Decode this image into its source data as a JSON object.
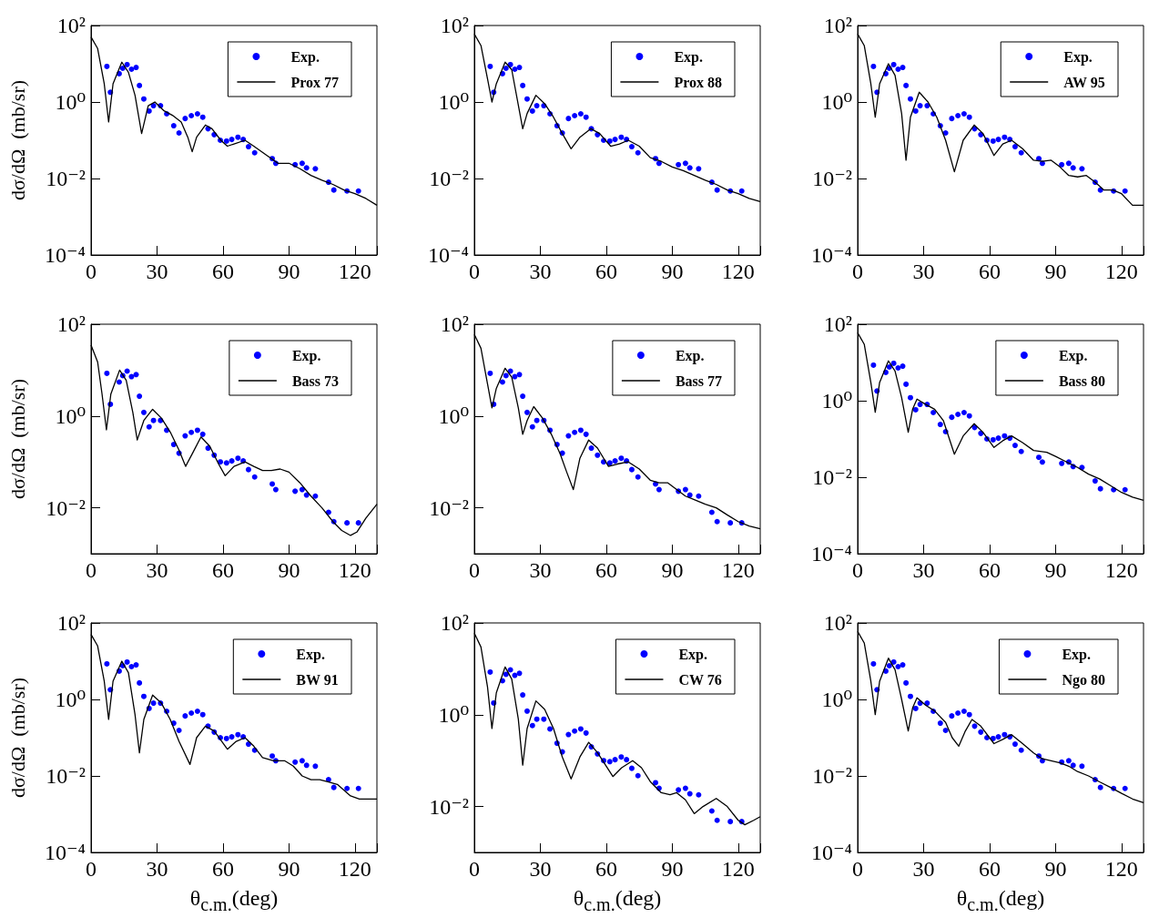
{
  "chart_data": [
    {
      "type": "scatter",
      "ylabel": "dσ/dΩ  (mb/sr)",
      "xlim": [
        0,
        130
      ],
      "xticks": [
        0,
        30,
        60,
        90,
        120
      ],
      "ylim": [
        0.0001,
        100
      ],
      "yticks": [
        {
          "value": 0.0001,
          "label": "10⁻⁴"
        },
        {
          "value": 0.01,
          "label": "10⁻²"
        },
        {
          "value": 1,
          "label": "10⁰"
        },
        {
          "value": 100,
          "label": "10²"
        }
      ],
      "log": "y",
      "grid": false,
      "legend": "top right",
      "marker": "circle",
      "line_style": "solid",
      "series": [
        {
          "name": "Exp.",
          "type": "scatter",
          "color": "#0000ff",
          "x": [
            7.2,
            8.8,
            12.8,
            14.4,
            16.4,
            18.4,
            20.5,
            22,
            24,
            26.4,
            28.4,
            31.6,
            34.4,
            37.6,
            40,
            42.8,
            45.6,
            48.4,
            50.8,
            53.2,
            56,
            58.8,
            61.6,
            64,
            66.8,
            69.2,
            71.6,
            74.4,
            82.4,
            84,
            92.8,
            96,
            98,
            102,
            108,
            110.4,
            116.4,
            121.6
          ],
          "values": [
            8.5,
            1.8,
            5.5,
            7.6,
            9.5,
            7.2,
            8,
            2.7,
            1.2,
            0.58,
            0.8,
            0.8,
            0.49,
            0.24,
            0.155,
            0.37,
            0.44,
            0.49,
            0.4,
            0.2,
            0.14,
            0.1,
            0.095,
            0.105,
            0.12,
            0.105,
            0.068,
            0.047,
            0.033,
            0.025,
            0.023,
            0.025,
            0.019,
            0.018,
            0.008,
            0.005,
            0.0047,
            0.0047
          ]
        },
        {
          "name": "Prox 77",
          "type": "line",
          "marker": "none",
          "color": "#000000",
          "x": [
            0,
            3,
            6,
            8,
            10,
            14,
            17,
            20,
            23,
            26,
            29,
            33,
            37,
            41,
            44,
            46,
            48,
            52,
            55,
            59,
            62,
            65,
            70,
            74,
            80,
            85,
            90,
            95,
            100,
            105,
            110,
            115,
            120,
            125,
            130
          ],
          "values": [
            50,
            25,
            3,
            0.3,
            3,
            11,
            6,
            1.5,
            0.15,
            0.8,
            1,
            0.6,
            0.45,
            0.3,
            0.12,
            0.05,
            0.12,
            0.25,
            0.2,
            0.1,
            0.07,
            0.08,
            0.1,
            0.07,
            0.04,
            0.025,
            0.025,
            0.018,
            0.012,
            0.009,
            0.007,
            0.005,
            0.004,
            0.003,
            0.002
          ]
        }
      ]
    },
    {
      "type": "scatter",
      "xlim": [
        0,
        130
      ],
      "xticks": [
        0,
        30,
        60,
        90,
        120
      ],
      "ylim": [
        0.0001,
        100
      ],
      "yticks": [
        {
          "value": 0.0001,
          "label": "10⁻⁴"
        },
        {
          "value": 0.01,
          "label": "10⁻²"
        },
        {
          "value": 1,
          "label": "10⁰"
        },
        {
          "value": 100,
          "label": "10²"
        }
      ],
      "log": "y",
      "grid": false,
      "legend": "top right",
      "marker": "circle",
      "line_style": "solid",
      "series": [
        {
          "name": "Exp.",
          "type": "scatter",
          "color": "#0000ff",
          "x": [
            7.2,
            8.8,
            12.8,
            14.4,
            16.4,
            18.4,
            20.5,
            22,
            24,
            26.4,
            28.4,
            31.6,
            34.4,
            37.6,
            40,
            42.8,
            45.6,
            48.4,
            50.8,
            53.2,
            56,
            58.8,
            61.6,
            64,
            66.8,
            69.2,
            71.6,
            74.4,
            82.4,
            84,
            92.8,
            96,
            98,
            102,
            108,
            110.4,
            116.4,
            121.6
          ],
          "values": [
            8.5,
            1.8,
            5.5,
            7.6,
            9.5,
            7.2,
            8,
            2.7,
            1.2,
            0.58,
            0.8,
            0.8,
            0.49,
            0.24,
            0.155,
            0.37,
            0.44,
            0.49,
            0.4,
            0.2,
            0.14,
            0.1,
            0.095,
            0.105,
            0.12,
            0.105,
            0.068,
            0.047,
            0.033,
            0.025,
            0.023,
            0.025,
            0.019,
            0.018,
            0.008,
            0.005,
            0.0047,
            0.0047
          ]
        },
        {
          "name": "Prox 88",
          "type": "line",
          "marker": "none",
          "color": "#000000",
          "x": [
            0,
            3,
            6,
            8,
            10,
            14,
            17,
            22,
            24,
            28,
            32,
            36,
            40,
            44,
            48,
            53,
            57,
            62,
            66,
            70,
            75,
            80,
            85,
            90,
            95,
            100,
            105,
            110,
            115,
            120,
            125,
            130
          ],
          "values": [
            60,
            30,
            4,
            1,
            3,
            11,
            7,
            0.2,
            0.5,
            1.5,
            0.9,
            0.4,
            0.15,
            0.06,
            0.12,
            0.2,
            0.15,
            0.07,
            0.08,
            0.1,
            0.07,
            0.035,
            0.028,
            0.02,
            0.016,
            0.012,
            0.009,
            0.007,
            0.005,
            0.004,
            0.003,
            0.0025
          ]
        }
      ]
    },
    {
      "type": "scatter",
      "xlim": [
        0,
        130
      ],
      "xticks": [
        0,
        30,
        60,
        90,
        120
      ],
      "ylim": [
        0.0001,
        100
      ],
      "yticks": [
        {
          "value": 0.0001,
          "label": "10⁻⁴"
        },
        {
          "value": 0.01,
          "label": "10⁻²"
        },
        {
          "value": 1,
          "label": "10⁰"
        },
        {
          "value": 100,
          "label": "10²"
        }
      ],
      "log": "y",
      "grid": false,
      "legend": "top right",
      "marker": "circle",
      "line_style": "solid",
      "series": [
        {
          "name": "Exp.",
          "type": "scatter",
          "color": "#0000ff",
          "x": [
            7.2,
            8.8,
            12.8,
            14.4,
            16.4,
            18.4,
            20.5,
            22,
            24,
            26.4,
            28.4,
            31.6,
            34.4,
            37.6,
            40,
            42.8,
            45.6,
            48.4,
            50.8,
            53.2,
            56,
            58.8,
            61.6,
            64,
            66.8,
            69.2,
            71.6,
            74.4,
            82.4,
            84,
            92.8,
            96,
            98,
            102,
            108,
            110.4,
            116.4,
            121.6
          ],
          "values": [
            8.5,
            1.8,
            5.5,
            7.6,
            9.5,
            7.2,
            8,
            2.7,
            1.2,
            0.58,
            0.8,
            0.8,
            0.49,
            0.24,
            0.155,
            0.37,
            0.44,
            0.49,
            0.4,
            0.2,
            0.14,
            0.1,
            0.095,
            0.105,
            0.12,
            0.105,
            0.068,
            0.047,
            0.033,
            0.025,
            0.023,
            0.025,
            0.019,
            0.018,
            0.008,
            0.005,
            0.0047,
            0.0047
          ]
        },
        {
          "name": "AW 95",
          "type": "line",
          "marker": "none",
          "color": "#000000",
          "x": [
            0,
            3,
            6,
            8,
            10,
            14,
            17,
            20,
            22,
            24,
            28,
            32,
            36,
            40,
            44,
            48,
            53,
            57,
            62,
            66,
            70,
            75,
            80,
            84,
            88,
            92,
            96,
            100,
            104,
            108,
            112,
            116,
            120,
            125,
            130
          ],
          "values": [
            60,
            30,
            3,
            0.4,
            3,
            10,
            5,
            0.5,
            0.03,
            0.4,
            1.8,
            1,
            0.4,
            0.1,
            0.015,
            0.1,
            0.25,
            0.15,
            0.04,
            0.08,
            0.1,
            0.06,
            0.03,
            0.028,
            0.03,
            0.02,
            0.012,
            0.011,
            0.012,
            0.008,
            0.005,
            0.005,
            0.004,
            0.002,
            0.002
          ]
        }
      ]
    },
    {
      "type": "scatter",
      "ylabel": "dσ/dΩ  (mb/sr)",
      "xlim": [
        0,
        130
      ],
      "xticks": [
        0,
        30,
        60,
        90,
        120
      ],
      "ylim": [
        0.001,
        100
      ],
      "yticks": [
        {
          "value": 0.01,
          "label": "10⁻²"
        },
        {
          "value": 1,
          "label": "10⁰"
        },
        {
          "value": 100,
          "label": "10²"
        }
      ],
      "log": "y",
      "grid": false,
      "legend": "top right",
      "marker": "circle",
      "line_style": "solid",
      "series": [
        {
          "name": "Exp.",
          "type": "scatter",
          "color": "#0000ff",
          "x": [
            7.2,
            8.8,
            12.8,
            14.4,
            16.4,
            18.4,
            20.5,
            22,
            24,
            26.4,
            28.4,
            31.6,
            34.4,
            37.6,
            40,
            42.8,
            45.6,
            48.4,
            50.8,
            53.2,
            56,
            58.8,
            61.6,
            64,
            66.8,
            69.2,
            71.6,
            74.4,
            82.4,
            84,
            92.8,
            96,
            98,
            102,
            108,
            110.4,
            116.4,
            121.6
          ],
          "values": [
            8.5,
            1.8,
            5.5,
            7.6,
            9.5,
            7.2,
            8,
            2.7,
            1.2,
            0.58,
            0.8,
            0.8,
            0.49,
            0.24,
            0.155,
            0.37,
            0.44,
            0.49,
            0.4,
            0.2,
            0.14,
            0.1,
            0.095,
            0.105,
            0.12,
            0.105,
            0.068,
            0.047,
            0.033,
            0.025,
            0.023,
            0.025,
            0.019,
            0.018,
            0.008,
            0.005,
            0.0047,
            0.0047
          ]
        },
        {
          "name": "Bass 73",
          "type": "line",
          "marker": "none",
          "color": "#000000",
          "x": [
            0,
            3,
            5,
            7,
            9,
            13,
            16,
            19,
            21,
            24,
            28,
            32,
            36,
            40,
            43,
            46,
            50,
            54,
            58,
            61,
            65,
            70,
            74,
            78,
            82,
            86,
            90,
            95,
            100,
            105,
            110,
            114,
            118,
            121,
            125,
            130
          ],
          "values": [
            35,
            15,
            3,
            0.5,
            3,
            10,
            6,
            1.2,
            0.3,
            0.8,
            1.4,
            0.9,
            0.45,
            0.18,
            0.08,
            0.15,
            0.35,
            0.22,
            0.09,
            0.05,
            0.08,
            0.1,
            0.08,
            0.065,
            0.065,
            0.07,
            0.06,
            0.035,
            0.018,
            0.01,
            0.005,
            0.0032,
            0.0025,
            0.003,
            0.006,
            0.012
          ]
        }
      ]
    },
    {
      "type": "scatter",
      "xlim": [
        0,
        130
      ],
      "xticks": [
        0,
        30,
        60,
        90,
        120
      ],
      "ylim": [
        0.001,
        100
      ],
      "yticks": [
        {
          "value": 0.01,
          "label": "10⁻²"
        },
        {
          "value": 1,
          "label": "10⁰"
        },
        {
          "value": 100,
          "label": "10²"
        }
      ],
      "log": "y",
      "grid": false,
      "legend": "top right",
      "marker": "circle",
      "line_style": "solid",
      "series": [
        {
          "name": "Exp.",
          "type": "scatter",
          "color": "#0000ff",
          "x": [
            7.2,
            8.8,
            12.8,
            14.4,
            16.4,
            18.4,
            20.5,
            22,
            24,
            26.4,
            28.4,
            31.6,
            34.4,
            37.6,
            40,
            42.8,
            45.6,
            48.4,
            50.8,
            53.2,
            56,
            58.8,
            61.6,
            64,
            66.8,
            69.2,
            71.6,
            74.4,
            82.4,
            84,
            92.8,
            96,
            98,
            102,
            108,
            110.4,
            116.4,
            121.6
          ],
          "values": [
            8.5,
            1.8,
            5.5,
            7.6,
            9.5,
            7.2,
            8,
            2.7,
            1.2,
            0.58,
            0.8,
            0.8,
            0.49,
            0.24,
            0.155,
            0.37,
            0.44,
            0.49,
            0.4,
            0.2,
            0.14,
            0.1,
            0.095,
            0.105,
            0.12,
            0.105,
            0.068,
            0.047,
            0.033,
            0.025,
            0.023,
            0.025,
            0.019,
            0.018,
            0.008,
            0.005,
            0.0047,
            0.0047
          ]
        },
        {
          "name": "Bass 77",
          "type": "line",
          "marker": "none",
          "color": "#000000",
          "x": [
            0,
            3,
            6,
            8,
            10,
            14,
            17,
            20,
            22,
            24,
            27,
            31,
            35,
            39,
            42,
            45,
            48,
            52,
            56,
            61,
            65,
            70,
            75,
            80,
            84,
            88,
            92,
            96,
            100,
            105,
            110,
            115,
            120,
            125,
            130
          ],
          "values": [
            60,
            30,
            5,
            1.5,
            4,
            11,
            7,
            1.5,
            0.4,
            0.8,
            1.6,
            0.9,
            0.4,
            0.15,
            0.06,
            0.025,
            0.12,
            0.3,
            0.2,
            0.08,
            0.09,
            0.1,
            0.07,
            0.04,
            0.035,
            0.035,
            0.025,
            0.018,
            0.015,
            0.012,
            0.01,
            0.007,
            0.005,
            0.004,
            0.0035
          ]
        }
      ]
    },
    {
      "type": "scatter",
      "xlim": [
        0,
        130
      ],
      "xticks": [
        0,
        30,
        60,
        90,
        120
      ],
      "ylim": [
        0.0001,
        100
      ],
      "yticks": [
        {
          "value": 0.0001,
          "label": "10⁻⁴"
        },
        {
          "value": 0.01,
          "label": "10⁻²"
        },
        {
          "value": 1,
          "label": "10⁰"
        },
        {
          "value": 100,
          "label": "10²"
        }
      ],
      "log": "y",
      "grid": false,
      "legend": "top right",
      "marker": "circle",
      "line_style": "solid",
      "series": [
        {
          "name": "Exp.",
          "type": "scatter",
          "color": "#0000ff",
          "x": [
            7.2,
            8.8,
            12.8,
            14.4,
            16.4,
            18.4,
            20.5,
            22,
            24,
            26.4,
            28.4,
            31.6,
            34.4,
            37.6,
            40,
            42.8,
            45.6,
            48.4,
            50.8,
            53.2,
            56,
            58.8,
            61.6,
            64,
            66.8,
            69.2,
            71.6,
            74.4,
            82.4,
            84,
            92.8,
            96,
            98,
            102,
            108,
            110.4,
            116.4,
            121.6
          ],
          "values": [
            8.5,
            1.8,
            5.5,
            7.6,
            9.5,
            7.2,
            8,
            2.7,
            1.2,
            0.58,
            0.8,
            0.8,
            0.49,
            0.24,
            0.155,
            0.37,
            0.44,
            0.49,
            0.4,
            0.2,
            0.14,
            0.1,
            0.095,
            0.105,
            0.12,
            0.105,
            0.068,
            0.047,
            0.033,
            0.025,
            0.023,
            0.025,
            0.019,
            0.018,
            0.008,
            0.005,
            0.0047,
            0.0047
          ]
        },
        {
          "name": "Bass 80",
          "type": "line",
          "marker": "none",
          "color": "#000000",
          "x": [
            0,
            3,
            6,
            8,
            10,
            14,
            17,
            20,
            23,
            25,
            27,
            31,
            35,
            39,
            44,
            48,
            53,
            57,
            62,
            66,
            70,
            75,
            80,
            86,
            90,
            95,
            100,
            105,
            110,
            115,
            120,
            125,
            130
          ],
          "values": [
            60,
            30,
            3,
            0.5,
            3,
            11,
            6,
            1.2,
            0.15,
            0.6,
            1.1,
            0.8,
            0.6,
            0.3,
            0.04,
            0.12,
            0.25,
            0.15,
            0.06,
            0.09,
            0.12,
            0.08,
            0.05,
            0.045,
            0.035,
            0.025,
            0.018,
            0.012,
            0.009,
            0.006,
            0.004,
            0.003,
            0.0025
          ]
        }
      ]
    },
    {
      "type": "scatter",
      "ylabel": "dσ/dΩ  (mb/sr)",
      "xlabel": "θ$_{c.m.}$(deg)",
      "xlim": [
        0,
        130
      ],
      "xticks": [
        0,
        30,
        60,
        90,
        120
      ],
      "ylim": [
        0.0001,
        100
      ],
      "yticks": [
        {
          "value": 0.0001,
          "label": "10⁻⁴"
        },
        {
          "value": 0.01,
          "label": "10⁻²"
        },
        {
          "value": 1,
          "label": "10⁰"
        },
        {
          "value": 100,
          "label": "10²"
        }
      ],
      "log": "y",
      "grid": false,
      "legend": "top right",
      "marker": "circle",
      "line_style": "solid",
      "series": [
        {
          "name": "Exp.",
          "type": "scatter",
          "color": "#0000ff",
          "x": [
            7.2,
            8.8,
            12.8,
            14.4,
            16.4,
            18.4,
            20.5,
            22,
            24,
            26.4,
            28.4,
            31.6,
            34.4,
            37.6,
            40,
            42.8,
            45.6,
            48.4,
            50.8,
            53.2,
            56,
            58.8,
            61.6,
            64,
            66.8,
            69.2,
            71.6,
            74.4,
            82.4,
            84,
            92.8,
            96,
            98,
            102,
            108,
            110.4,
            116.4,
            121.6
          ],
          "values": [
            8.5,
            1.8,
            5.5,
            7.6,
            9.5,
            7.2,
            8,
            2.7,
            1.2,
            0.58,
            0.8,
            0.8,
            0.49,
            0.24,
            0.155,
            0.37,
            0.44,
            0.49,
            0.4,
            0.2,
            0.14,
            0.1,
            0.095,
            0.105,
            0.12,
            0.105,
            0.068,
            0.047,
            0.033,
            0.025,
            0.023,
            0.025,
            0.019,
            0.018,
            0.008,
            0.005,
            0.0047,
            0.0047
          ]
        },
        {
          "name": "BW 91",
          "type": "line",
          "marker": "none",
          "color": "#000000",
          "x": [
            0,
            3,
            6,
            8,
            10,
            14,
            17,
            20,
            22,
            24,
            28,
            32,
            36,
            40,
            45,
            48,
            52,
            56,
            62,
            66,
            70,
            74,
            78,
            83,
            88,
            92,
            96,
            100,
            104,
            108,
            112,
            118,
            122,
            126,
            130
          ],
          "values": [
            50,
            25,
            3,
            0.3,
            3,
            10,
            5,
            0.4,
            0.04,
            0.3,
            1.3,
            0.8,
            0.3,
            0.08,
            0.02,
            0.1,
            0.2,
            0.15,
            0.05,
            0.08,
            0.1,
            0.06,
            0.03,
            0.025,
            0.025,
            0.018,
            0.01,
            0.008,
            0.008,
            0.007,
            0.006,
            0.003,
            0.0025,
            0.0025,
            0.0025
          ]
        }
      ]
    },
    {
      "type": "scatter",
      "xlabel": "θ$_{c.m.}$(deg)",
      "xlim": [
        0,
        130
      ],
      "xticks": [
        0,
        30,
        60,
        90,
        120
      ],
      "ylim": [
        0.001,
        100
      ],
      "yticks": [
        {
          "value": 0.01,
          "label": "10⁻²"
        },
        {
          "value": 1,
          "label": "10⁰"
        },
        {
          "value": 100,
          "label": "10²"
        }
      ],
      "log": "y",
      "grid": false,
      "legend": "top right",
      "marker": "circle",
      "line_style": "solid",
      "series": [
        {
          "name": "Exp.",
          "type": "scatter",
          "color": "#0000ff",
          "x": [
            7.2,
            8.8,
            12.8,
            14.4,
            16.4,
            18.4,
            20.5,
            22,
            24,
            26.4,
            28.4,
            31.6,
            34.4,
            37.6,
            40,
            42.8,
            45.6,
            48.4,
            50.8,
            53.2,
            56,
            58.8,
            61.6,
            64,
            66.8,
            69.2,
            71.6,
            74.4,
            82.4,
            84,
            92.8,
            96,
            98,
            102,
            108,
            110.4,
            116.4,
            121.6
          ],
          "values": [
            8.5,
            1.8,
            5.5,
            7.6,
            9.5,
            7.2,
            8,
            2.7,
            1.2,
            0.58,
            0.8,
            0.8,
            0.49,
            0.24,
            0.155,
            0.37,
            0.44,
            0.49,
            0.4,
            0.2,
            0.14,
            0.1,
            0.095,
            0.105,
            0.12,
            0.105,
            0.068,
            0.047,
            0.033,
            0.025,
            0.023,
            0.025,
            0.019,
            0.018,
            0.008,
            0.005,
            0.0047,
            0.0047
          ]
        },
        {
          "name": "CW 76",
          "type": "line",
          "marker": "none",
          "color": "#000000",
          "x": [
            0,
            3,
            6,
            8,
            10,
            14,
            17,
            20,
            22,
            24,
            28,
            32,
            36,
            40,
            44,
            48,
            52,
            56,
            63,
            67,
            72,
            76,
            80,
            85,
            89,
            92,
            96,
            100,
            104,
            110,
            115,
            120,
            123,
            127,
            130
          ],
          "values": [
            60,
            30,
            4,
            0.5,
            3,
            11,
            6,
            0.8,
            0.08,
            0.5,
            2,
            1.3,
            0.5,
            0.12,
            0.04,
            0.12,
            0.25,
            0.15,
            0.045,
            0.07,
            0.1,
            0.07,
            0.035,
            0.02,
            0.018,
            0.02,
            0.014,
            0.007,
            0.01,
            0.015,
            0.01,
            0.005,
            0.004,
            0.005,
            0.006
          ]
        }
      ]
    },
    {
      "type": "scatter",
      "xlabel": "θ$_{c.m.}$(deg)",
      "xlim": [
        0,
        130
      ],
      "xticks": [
        0,
        30,
        60,
        90,
        120
      ],
      "ylim": [
        0.0001,
        100
      ],
      "yticks": [
        {
          "value": 0.0001,
          "label": "10⁻⁴"
        },
        {
          "value": 0.01,
          "label": "10⁻²"
        },
        {
          "value": 1,
          "label": "10⁰"
        },
        {
          "value": 100,
          "label": "10²"
        }
      ],
      "log": "y",
      "grid": false,
      "legend": "top right",
      "marker": "circle",
      "line_style": "solid",
      "series": [
        {
          "name": "Exp.",
          "type": "scatter",
          "color": "#0000ff",
          "x": [
            7.2,
            8.8,
            12.8,
            14.4,
            16.4,
            18.4,
            20.5,
            22,
            24,
            26.4,
            28.4,
            31.6,
            34.4,
            37.6,
            40,
            42.8,
            45.6,
            48.4,
            50.8,
            53.2,
            56,
            58.8,
            61.6,
            64,
            66.8,
            69.2,
            71.6,
            74.4,
            82.4,
            84,
            92.8,
            96,
            98,
            102,
            108,
            110.4,
            116.4,
            121.6
          ],
          "values": [
            8.5,
            1.8,
            5.5,
            7.6,
            9.5,
            7.2,
            8,
            2.7,
            1.2,
            0.58,
            0.8,
            0.8,
            0.49,
            0.24,
            0.155,
            0.37,
            0.44,
            0.49,
            0.4,
            0.2,
            0.14,
            0.1,
            0.095,
            0.105,
            0.12,
            0.105,
            0.068,
            0.047,
            0.033,
            0.025,
            0.023,
            0.025,
            0.019,
            0.018,
            0.008,
            0.005,
            0.0047,
            0.0047
          ]
        },
        {
          "name": "Ngo 80",
          "type": "line",
          "marker": "none",
          "color": "#000000",
          "x": [
            0,
            3,
            6,
            8,
            10,
            14,
            17,
            20,
            23,
            25,
            27,
            31,
            35,
            40,
            43,
            46,
            49,
            52,
            56,
            62,
            66,
            70,
            75,
            80,
            84,
            88,
            92,
            96,
            100,
            105,
            110,
            115,
            120,
            125,
            130
          ],
          "values": [
            60,
            30,
            3,
            0.4,
            3,
            12,
            6,
            1,
            0.15,
            0.6,
            1.1,
            0.7,
            0.5,
            0.25,
            0.1,
            0.06,
            0.15,
            0.3,
            0.2,
            0.07,
            0.09,
            0.12,
            0.07,
            0.04,
            0.028,
            0.025,
            0.022,
            0.018,
            0.013,
            0.01,
            0.007,
            0.005,
            0.0035,
            0.0025,
            0.002
          ]
        }
      ]
    }
  ]
}
